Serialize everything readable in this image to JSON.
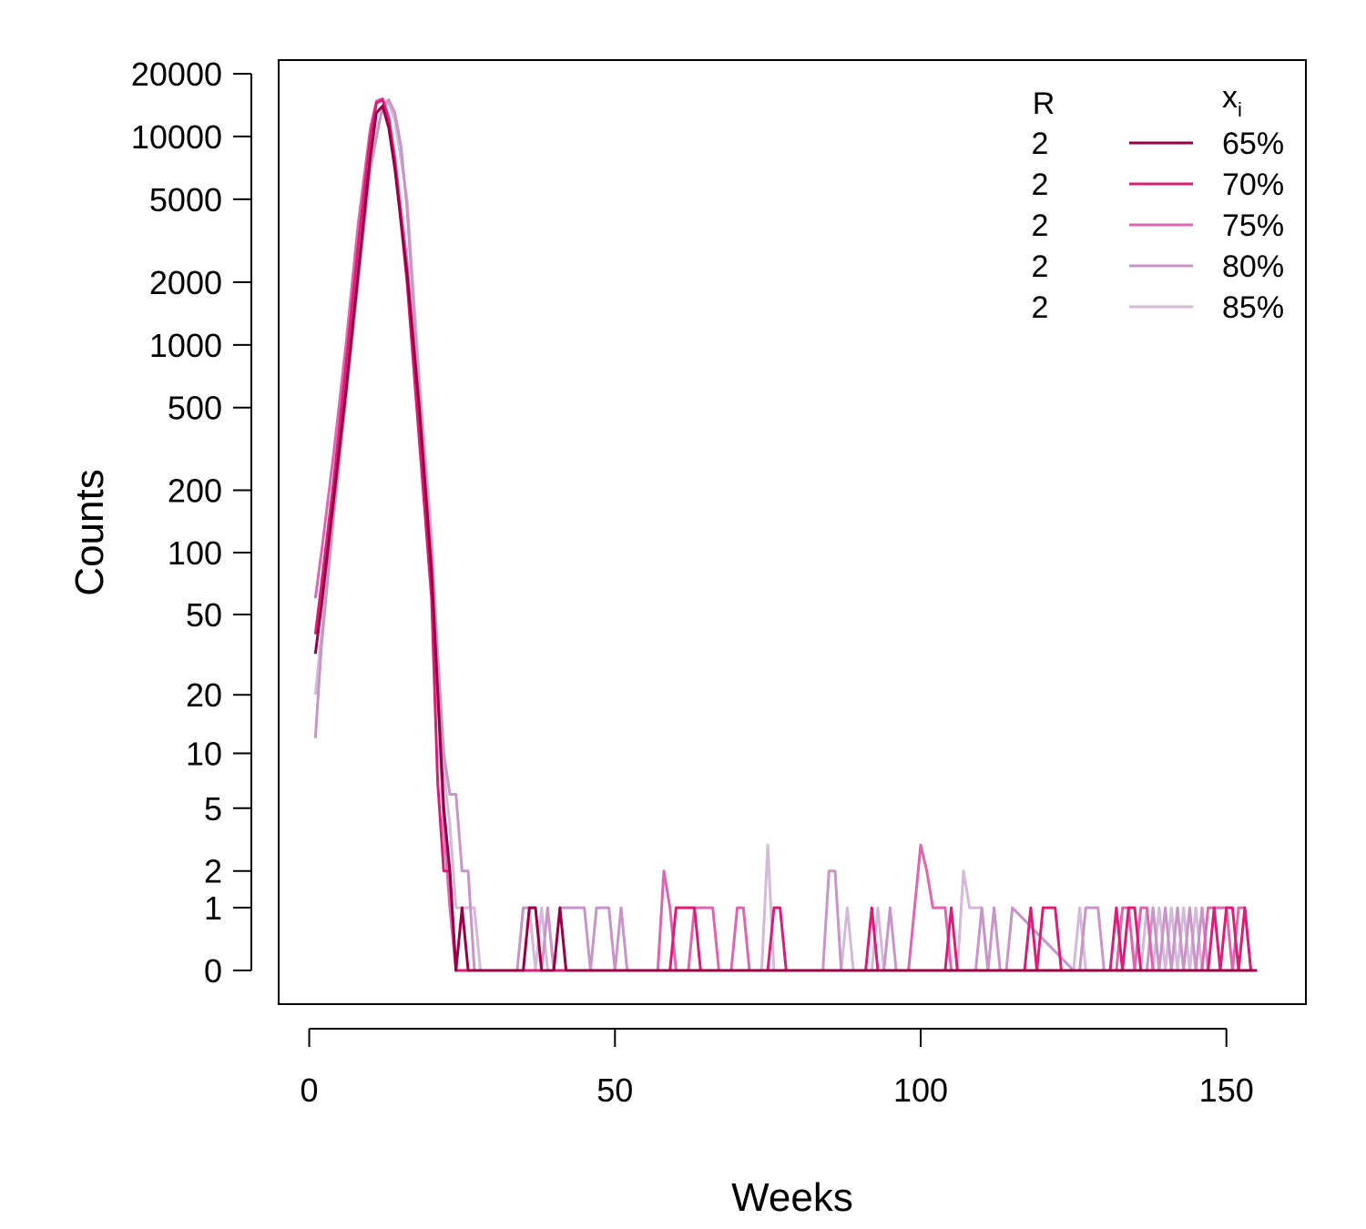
{
  "chart_data": {
    "type": "line",
    "title": "",
    "xlabel": "Weeks",
    "ylabel": "Counts",
    "y_scale": "log(y+1)",
    "xlim": [
      -5,
      163
    ],
    "x_ticks": [
      0,
      50,
      100,
      150
    ],
    "y_ticks": [
      0,
      1,
      2,
      5,
      10,
      20,
      50,
      100,
      200,
      500,
      1000,
      2000,
      5000,
      10000,
      20000
    ],
    "grid": false,
    "legend": {
      "placement": "top-right",
      "header_r": "R",
      "header_x": "x",
      "header_x_sub": "i",
      "entries": [
        {
          "r": "2",
          "label": "65%",
          "color": "#980043"
        },
        {
          "r": "2",
          "label": "70%",
          "color": "#dd1c77"
        },
        {
          "r": "2",
          "label": "75%",
          "color": "#df65b0"
        },
        {
          "r": "2",
          "label": "80%",
          "color": "#c994c7"
        },
        {
          "r": "2",
          "label": "85%",
          "color": "#d4b9da"
        }
      ]
    },
    "series": [
      {
        "color": "#980043",
        "x": [
          1,
          2,
          4,
          6,
          8,
          10,
          11,
          12,
          13,
          14,
          16,
          18,
          20,
          22,
          23,
          24,
          25,
          26,
          27,
          35,
          36,
          37,
          38,
          39,
          40,
          41,
          42,
          155
        ],
        "y": [
          32,
          55,
          180,
          600,
          2200,
          8000,
          13000,
          14000,
          11000,
          7000,
          2200,
          500,
          80,
          5,
          2,
          0,
          1,
          0,
          0,
          0,
          1,
          1,
          0,
          0,
          0,
          1,
          0,
          0
        ]
      },
      {
        "color": "#dd1c77",
        "x": [
          1,
          2,
          4,
          6,
          8,
          10,
          11,
          12,
          13,
          14,
          16,
          18,
          20,
          21,
          22,
          23,
          24,
          25,
          26,
          27,
          59,
          60,
          61,
          62,
          63,
          64,
          65,
          66,
          67,
          75,
          76,
          77,
          78,
          91,
          92,
          93,
          94,
          95,
          104,
          105,
          106,
          107,
          117,
          118,
          119,
          120,
          121,
          122,
          123,
          130,
          131,
          132,
          133,
          134,
          135,
          136,
          147,
          148,
          149,
          150,
          151,
          152,
          153,
          154,
          155
        ],
        "y": [
          40,
          70,
          220,
          800,
          3000,
          10000,
          14500,
          15000,
          12000,
          7500,
          2000,
          350,
          60,
          7,
          2,
          2,
          0,
          0,
          0,
          0,
          0,
          1,
          1,
          1,
          1,
          0,
          0,
          0,
          0,
          0,
          1,
          1,
          0,
          0,
          1,
          0,
          0,
          0,
          0,
          1,
          0,
          0,
          0,
          1,
          0,
          1,
          1,
          1,
          0,
          0,
          0,
          1,
          0,
          1,
          1,
          0,
          0,
          1,
          0,
          1,
          1,
          0,
          1,
          0,
          0
        ]
      },
      {
        "color": "#df65b0",
        "x": [
          1,
          2,
          4,
          6,
          8,
          10,
          11,
          12,
          13,
          14,
          16,
          18,
          20,
          22,
          23,
          24,
          25,
          26,
          27,
          56,
          57,
          58,
          59,
          60,
          61,
          62,
          63,
          64,
          65,
          66,
          67,
          68,
          69,
          70,
          71,
          72,
          73,
          74,
          98,
          99,
          100,
          101,
          102,
          103,
          104,
          105,
          106,
          132,
          133,
          134,
          135,
          136,
          137,
          138,
          145,
          146,
          147,
          148,
          149,
          150,
          151,
          152,
          153,
          154,
          155
        ],
        "y": [
          60,
          100,
          300,
          1000,
          3800,
          11000,
          14800,
          15200,
          12500,
          8000,
          2500,
          500,
          90,
          4,
          1,
          0,
          0,
          0,
          0,
          0,
          0,
          2,
          1,
          0,
          0,
          0,
          1,
          1,
          1,
          1,
          0,
          0,
          0,
          1,
          1,
          0,
          0,
          0,
          0,
          1,
          3,
          2,
          1,
          1,
          1,
          0,
          0,
          0,
          1,
          1,
          0,
          1,
          1,
          0,
          0,
          0,
          1,
          1,
          1,
          1,
          0,
          1,
          1,
          0,
          0
        ]
      },
      {
        "color": "#c994c7",
        "x": [
          1,
          2,
          4,
          6,
          8,
          10,
          12,
          13,
          14,
          15,
          16,
          18,
          20,
          22,
          23,
          24,
          25,
          26,
          27,
          28,
          29,
          34,
          35,
          36,
          37,
          38,
          39,
          40,
          41,
          42,
          43,
          44,
          45,
          46,
          47,
          48,
          49,
          50,
          51,
          52,
          84,
          85,
          86,
          87,
          94,
          95,
          96,
          97,
          98,
          109,
          110,
          111,
          112,
          113,
          114,
          115,
          125,
          126,
          127,
          128,
          129,
          130,
          137,
          138,
          139,
          140,
          141,
          142,
          143,
          144,
          145,
          146,
          147,
          148,
          155
        ],
        "y": [
          12,
          35,
          150,
          550,
          2000,
          7000,
          14000,
          15000,
          13000,
          9000,
          4500,
          600,
          100,
          10,
          6,
          6,
          2,
          2,
          0,
          0,
          0,
          0,
          1,
          1,
          1,
          0,
          1,
          0,
          1,
          1,
          1,
          1,
          1,
          0,
          1,
          1,
          1,
          0,
          1,
          0,
          0,
          2,
          2,
          0,
          0,
          1,
          0,
          0,
          0,
          0,
          1,
          0,
          1,
          0,
          0,
          1,
          0,
          0,
          1,
          1,
          1,
          0,
          0,
          1,
          0,
          1,
          0,
          1,
          0,
          1,
          0,
          1,
          0,
          0,
          0
        ]
      },
      {
        "color": "#d4b9da",
        "x": [
          1,
          2,
          4,
          6,
          8,
          10,
          12,
          13,
          14,
          16,
          18,
          20,
          22,
          23,
          24,
          25,
          26,
          27,
          28,
          29,
          35,
          36,
          37,
          38,
          39,
          74,
          75,
          76,
          77,
          87,
          88,
          89,
          92,
          93,
          94,
          106,
          107,
          108,
          109,
          110,
          111,
          112,
          113,
          125,
          126,
          127,
          128,
          129,
          133,
          134,
          135,
          136,
          137,
          138,
          139,
          140,
          141,
          142,
          143,
          144,
          145,
          146,
          155
        ],
        "y": [
          20,
          40,
          160,
          600,
          2300,
          8000,
          13500,
          14500,
          12000,
          5000,
          700,
          120,
          8,
          4,
          1,
          1,
          1,
          1,
          0,
          0,
          0,
          1,
          0,
          1,
          0,
          0,
          3,
          0,
          0,
          0,
          1,
          0,
          0,
          1,
          0,
          0,
          2,
          1,
          1,
          1,
          0,
          0,
          0,
          0,
          1,
          0,
          0,
          0,
          0,
          1,
          0,
          0,
          1,
          0,
          1,
          0,
          1,
          0,
          1,
          0,
          1,
          0,
          0
        ]
      }
    ]
  }
}
